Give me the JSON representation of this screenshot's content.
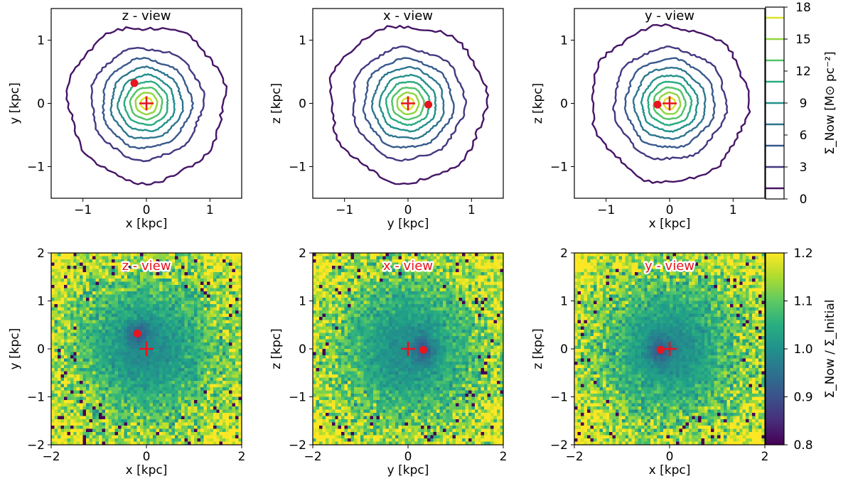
{
  "chart_data": {
    "type": "contour+heatmap",
    "top_row": [
      {
        "title": "z - view",
        "xlabel": "x [kpc]",
        "ylabel": "y [kpc]",
        "xlim": [
          -1.5,
          1.5
        ],
        "ylim": [
          -1.5,
          1.5
        ],
        "xticks": [
          "−1",
          "0",
          "1"
        ],
        "yticks": [
          "−1",
          "0",
          "1"
        ],
        "marker_dot": [
          -0.19,
          0.32
        ],
        "marker_plus": [
          0.0,
          0.0
        ]
      },
      {
        "title": "x - view",
        "xlabel": "y [kpc]",
        "ylabel": "z [kpc]",
        "xlim": [
          -1.5,
          1.5
        ],
        "ylim": [
          -1.5,
          1.5
        ],
        "xticks": [
          "−1",
          "0",
          "1"
        ],
        "yticks": [
          "−1",
          "0",
          "1"
        ],
        "marker_dot": [
          0.32,
          -0.02
        ],
        "marker_plus": [
          0.0,
          0.0
        ]
      },
      {
        "title": "y - view",
        "xlabel": "x [kpc]",
        "ylabel": "z [kpc]",
        "xlim": [
          -1.5,
          1.5
        ],
        "ylim": [
          -1.5,
          1.5
        ],
        "xticks": [
          "−1",
          "0",
          "1"
        ],
        "yticks": [
          "−1",
          "0",
          "1"
        ],
        "marker_dot": [
          -0.19,
          -0.02
        ],
        "marker_plus": [
          0.0,
          0.0
        ]
      }
    ],
    "bottom_row": [
      {
        "title": "z - view",
        "xlabel": "x [kpc]",
        "ylabel": "y [kpc]",
        "xlim": [
          -2,
          2
        ],
        "ylim": [
          -2,
          2
        ],
        "xticks": [
          "−2",
          "0",
          "2"
        ],
        "yticks": [
          "−2",
          "−1",
          "0",
          "1",
          "2"
        ],
        "marker_dot": [
          -0.19,
          0.32
        ],
        "marker_plus": [
          0.0,
          0.0
        ]
      },
      {
        "title": "x - view",
        "xlabel": "y [kpc]",
        "ylabel": "z [kpc]",
        "xlim": [
          -2,
          2
        ],
        "ylim": [
          -2,
          2
        ],
        "xticks": [
          "−2",
          "0",
          "2"
        ],
        "yticks": [
          "−2",
          "−1",
          "0",
          "1",
          "2"
        ],
        "marker_dot": [
          0.32,
          -0.02
        ],
        "marker_plus": [
          0.0,
          0.0
        ]
      },
      {
        "title": "y - view",
        "xlabel": "x [kpc]",
        "ylabel": "z [kpc]",
        "xlim": [
          -2,
          2
        ],
        "ylim": [
          -2,
          2
        ],
        "xticks": [
          "−2",
          "0",
          "2"
        ],
        "yticks": [
          "−2",
          "−1",
          "0",
          "1",
          "2"
        ],
        "marker_dot": [
          -0.19,
          -0.02
        ],
        "marker_plus": [
          0.0,
          0.0
        ]
      }
    ],
    "contour_levels": [
      1,
      3,
      5,
      7,
      9,
      11,
      13,
      15,
      17
    ],
    "contour_radii_kpc": [
      1.23,
      0.88,
      0.7,
      0.56,
      0.44,
      0.34,
      0.25,
      0.17,
      0.09
    ],
    "top_colorbar": {
      "label": "Σ_Now   [M⊙ pc⁻²]",
      "range": [
        0,
        18
      ],
      "ticks": [
        "0",
        "3",
        "6",
        "9",
        "12",
        "15",
        "18"
      ]
    },
    "bottom_colorbar": {
      "label": "Σ_Now / Σ_Initial",
      "range": [
        0.8,
        1.2
      ],
      "ticks": [
        "0.8",
        "0.9",
        "1.0",
        "1.1",
        "1.2"
      ]
    }
  }
}
